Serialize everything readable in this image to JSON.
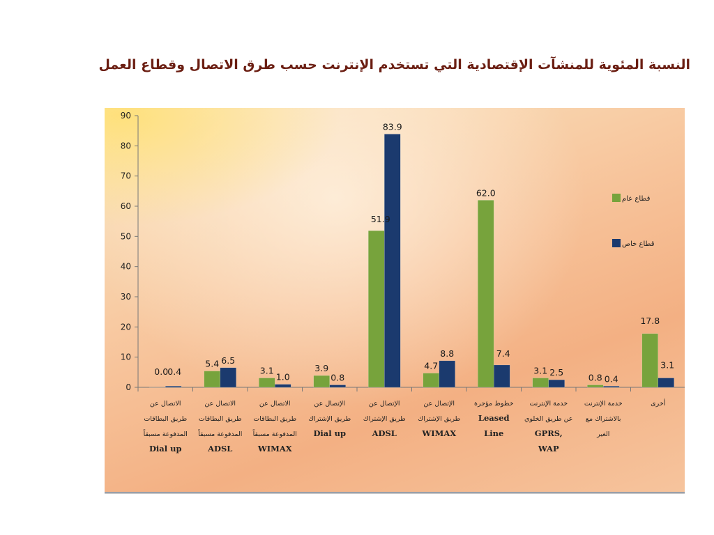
{
  "slide": {
    "title": "النسبة المئوية للمنشآت الإقتصادية التي تستخدم الإنترنت حسب طرق الاتصال وقطاع العمل"
  },
  "chart_data": {
    "type": "bar",
    "title": "النسبة المئوية للمنشآت الإقتصادية التي تستخدم الإنترنت حسب طرق الاتصال وقطاع العمل",
    "xlabel": "",
    "ylabel": "",
    "ylim": [
      0,
      90
    ],
    "yticks": [
      0,
      10,
      20,
      30,
      40,
      50,
      60,
      70,
      80,
      90
    ],
    "grid": false,
    "legend_position": "right",
    "categories": [
      [
        "الاتصال عن",
        "طريق البطاقات",
        "المدفوعة مسبقاً",
        "Dial up"
      ],
      [
        "الاتصال عن",
        "طريق البطاقات",
        "المدفوعة مسبقاً",
        "ADSL"
      ],
      [
        "الاتصال عن",
        "طريق البطاقات",
        "المدفوعة مسبقاً",
        "WIMAX"
      ],
      [
        "الإتصال عن",
        "طريق الإشتراك",
        "Dial up"
      ],
      [
        "الإتصال عن",
        "طريق الإشتراك",
        "ADSL"
      ],
      [
        "الإتصال عن",
        "طريق الإشتراك",
        "WIMAX"
      ],
      [
        "خطوط مؤجرة",
        "Leased",
        "Line"
      ],
      [
        "خدمة الإنترنت",
        "عن طريق الخلوي",
        "GPRS,",
        "WAP"
      ],
      [
        "خدمة الإنترنت",
        "بالاشتراك مع",
        "الغير"
      ],
      [
        "أخرى"
      ]
    ],
    "series": [
      {
        "name": "قطاع عام",
        "color": "#77a33c",
        "values": [
          0.0,
          5.4,
          3.1,
          3.9,
          51.9,
          4.7,
          62.0,
          3.1,
          0.8,
          17.8
        ]
      },
      {
        "name": "قطاع خاص",
        "color": "#1b3a6e",
        "values": [
          0.4,
          6.5,
          1.0,
          0.8,
          83.9,
          8.8,
          7.4,
          2.5,
          0.4,
          3.1
        ]
      }
    ],
    "value_labels": [
      [
        "0.0",
        "5.4",
        "3.1",
        "3.9",
        "51.9",
        "4.7",
        "62.0",
        "3.1",
        "0.8",
        "17.8"
      ],
      [
        "0.4",
        "6.5",
        "1.0",
        "0.8",
        "83.9",
        "8.8",
        "7.4",
        "2.5",
        "0.4",
        "3.1"
      ]
    ]
  }
}
